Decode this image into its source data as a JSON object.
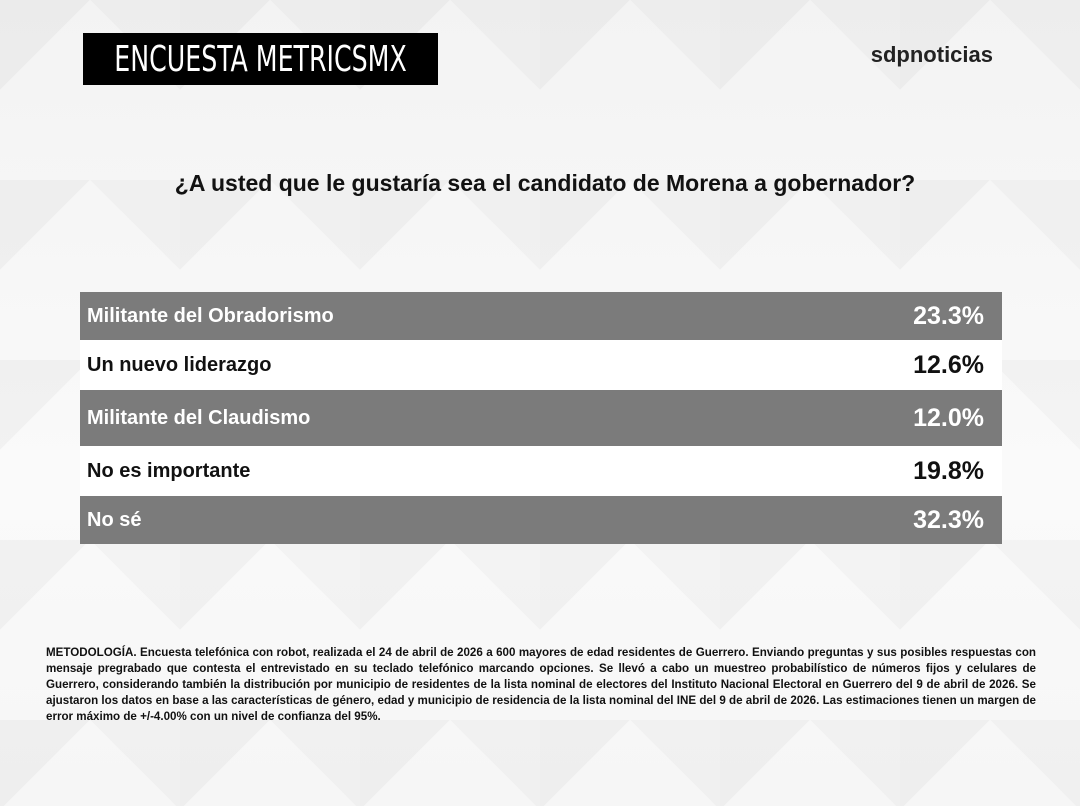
{
  "header": {
    "title": "ENCUESTA METRICSMX",
    "logo": "sdpnoticias"
  },
  "question": "¿A usted que le gustaría sea el candidato de Morena a gobernador?",
  "colors": {
    "dark_row": "#7b7b7b",
    "light_row": "#ffffff",
    "title_box": "#000000"
  },
  "chart_data": {
    "type": "table",
    "title": "¿A usted que le gustaría sea el candidato de Morena a gobernador?",
    "rows": [
      {
        "label": "Militante del Obradorismo",
        "value": "23.3%"
      },
      {
        "label": "Un nuevo liderazgo",
        "value": "12.6%"
      },
      {
        "label": "Militante del Claudismo",
        "value": "12.0%"
      },
      {
        "label": "No es importante",
        "value": "19.8%"
      },
      {
        "label": "No sé",
        "value": "32.3%"
      }
    ]
  },
  "methodology": "METODOLOGÍA. Encuesta telefónica con robot, realizada el 24 de abril de 2026 a 600 mayores de edad residentes de Guerrero. Enviando preguntas y sus posibles respuestas con mensaje pregrabado que contesta el entrevistado en su teclado telefónico marcando opciones. Se llevó a cabo un muestreo probabilístico de números fijos y celulares de Guerrero, considerando también la distribución por municipio de residentes de la lista nominal de electores del Instituto Nacional Electoral en Guerrero del 9 de abril de 2026. Se ajustaron los datos en base a las características de género, edad y municipio de residencia de la lista nominal del INE del 9 de abril de 2026. Las estimaciones tienen un margen de error máximo de +/-4.00% con un nivel de confianza del 95%."
}
